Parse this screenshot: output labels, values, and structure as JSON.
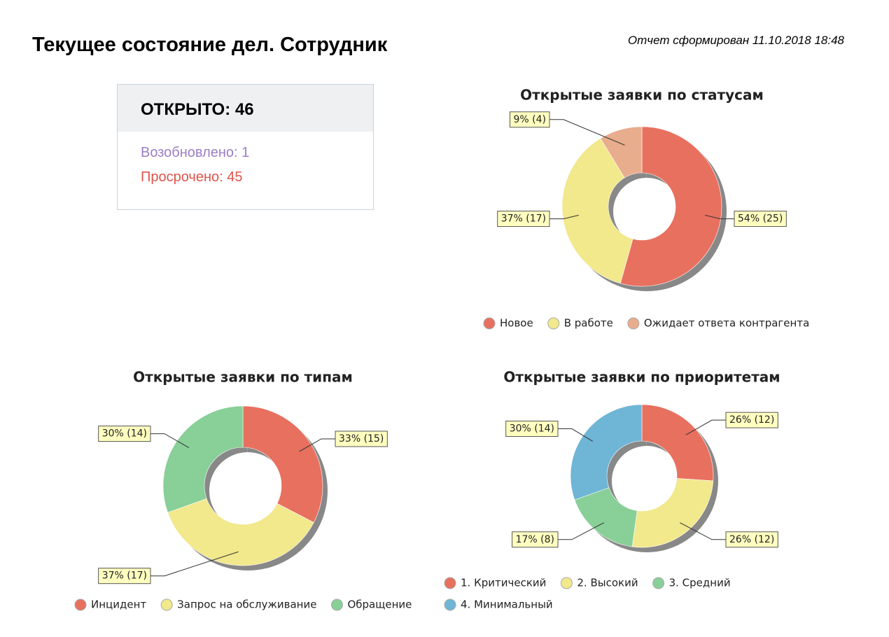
{
  "header": {
    "title": "Текущее состояние дел. Сотрудник",
    "generated": "Отчет сформирован 11.10.2018 18:48"
  },
  "summary": {
    "open": "ОТКРЫТО: 46",
    "reopened": "Возобновлено: 1",
    "overdue": "Просрочено: 45"
  },
  "chart_data": [
    {
      "type": "pie",
      "title": "Открытые заявки по статусам",
      "categories": [
        "Новое",
        "В работе",
        "Ожидает ответа контрагента"
      ],
      "values": [
        25,
        17,
        4
      ],
      "value_labels": [
        "54% (25)",
        "37% (17)",
        "9% (4)"
      ],
      "colors": [
        "#e8705f",
        "#f2e88c",
        "#e8ad8c"
      ]
    },
    {
      "type": "pie",
      "title": "Открытые заявки по типам",
      "categories": [
        "Инцидент",
        "Запрос на обслуживание",
        "Обращение"
      ],
      "values": [
        15,
        17,
        14
      ],
      "value_labels": [
        "33% (15)",
        "37% (17)",
        "30% (14)"
      ],
      "colors": [
        "#e8705f",
        "#f2e88c",
        "#88cf98"
      ]
    },
    {
      "type": "pie",
      "title": "Открытые заявки по приоритетам",
      "categories": [
        "1. Критический",
        "2. Высокий",
        "3. Средний",
        "4. Минимальный"
      ],
      "values": [
        12,
        12,
        8,
        14
      ],
      "value_labels": [
        "26% (12)",
        "26% (12)",
        "17% (8)",
        "30% (14)"
      ],
      "colors": [
        "#e8705f",
        "#f2e88c",
        "#88cf98",
        "#6fb5d5"
      ]
    }
  ]
}
